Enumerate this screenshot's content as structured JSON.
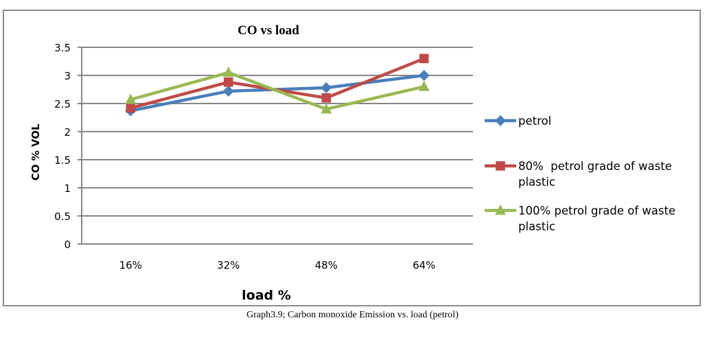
{
  "chart_data": {
    "type": "line",
    "title": "CO vs load",
    "xlabel": "load %",
    "ylabel": "CO  % VOL",
    "categories": [
      "16%",
      "32%",
      "48%",
      "64%"
    ],
    "ylim": [
      0,
      3.5
    ],
    "yticks": [
      0,
      0.5,
      1,
      1.5,
      2,
      2.5,
      3,
      3.5
    ],
    "ytick_labels": [
      "0",
      "0.5",
      "1",
      "1.5",
      "2",
      "2.5",
      "3",
      "3.5"
    ],
    "grid": true,
    "legend_position": "right",
    "series": [
      {
        "name": "petrol",
        "marker": "diamond",
        "color": "#4a7ebb",
        "values": [
          2.37,
          2.72,
          2.78,
          3.0
        ]
      },
      {
        "name": "80%  petrol grade of waste plastic",
        "marker": "square",
        "color": "#be4b48",
        "values": [
          2.42,
          2.88,
          2.6,
          3.3
        ]
      },
      {
        "name": "100% petrol grade of waste plastic",
        "marker": "triangle",
        "color": "#98b954",
        "values": [
          2.57,
          3.05,
          2.4,
          2.8
        ]
      }
    ]
  },
  "caption": "Graph3.9; Carbon monoxide Emission vs. load (petrol)"
}
